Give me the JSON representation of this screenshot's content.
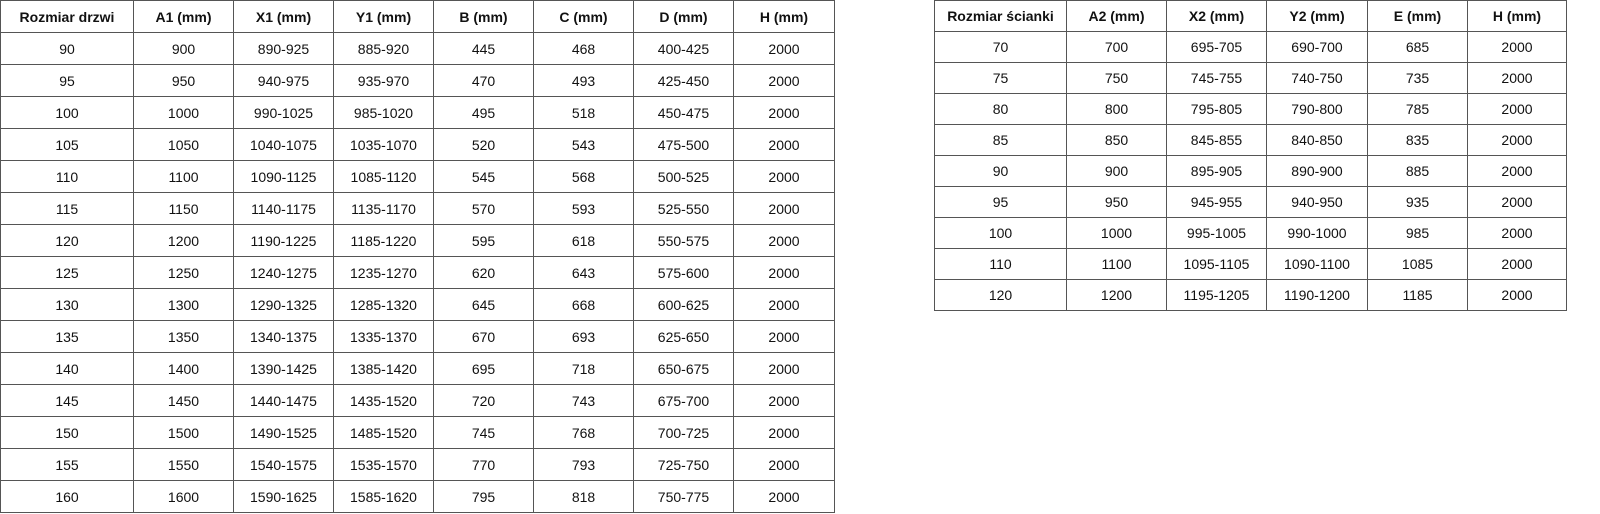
{
  "door_table": {
    "headers": [
      "Rozmiar drzwi",
      "A1 (mm)",
      "X1 (mm)",
      "Y1 (mm)",
      "B (mm)",
      "C (mm)",
      "D (mm)",
      "H (mm)"
    ],
    "rows": [
      [
        "90",
        "900",
        "890-925",
        "885-920",
        "445",
        "468",
        "400-425",
        "2000"
      ],
      [
        "95",
        "950",
        "940-975",
        "935-970",
        "470",
        "493",
        "425-450",
        "2000"
      ],
      [
        "100",
        "1000",
        "990-1025",
        "985-1020",
        "495",
        "518",
        "450-475",
        "2000"
      ],
      [
        "105",
        "1050",
        "1040-1075",
        "1035-1070",
        "520",
        "543",
        "475-500",
        "2000"
      ],
      [
        "110",
        "1100",
        "1090-1125",
        "1085-1120",
        "545",
        "568",
        "500-525",
        "2000"
      ],
      [
        "115",
        "1150",
        "1140-1175",
        "1135-1170",
        "570",
        "593",
        "525-550",
        "2000"
      ],
      [
        "120",
        "1200",
        "1190-1225",
        "1185-1220",
        "595",
        "618",
        "550-575",
        "2000"
      ],
      [
        "125",
        "1250",
        "1240-1275",
        "1235-1270",
        "620",
        "643",
        "575-600",
        "2000"
      ],
      [
        "130",
        "1300",
        "1290-1325",
        "1285-1320",
        "645",
        "668",
        "600-625",
        "2000"
      ],
      [
        "135",
        "1350",
        "1340-1375",
        "1335-1370",
        "670",
        "693",
        "625-650",
        "2000"
      ],
      [
        "140",
        "1400",
        "1390-1425",
        "1385-1420",
        "695",
        "718",
        "650-675",
        "2000"
      ],
      [
        "145",
        "1450",
        "1440-1475",
        "1435-1520",
        "720",
        "743",
        "675-700",
        "2000"
      ],
      [
        "150",
        "1500",
        "1490-1525",
        "1485-1520",
        "745",
        "768",
        "700-725",
        "2000"
      ],
      [
        "155",
        "1550",
        "1540-1575",
        "1535-1570",
        "770",
        "793",
        "725-750",
        "2000"
      ],
      [
        "160",
        "1600",
        "1590-1625",
        "1585-1620",
        "795",
        "818",
        "750-775",
        "2000"
      ]
    ]
  },
  "wall_table": {
    "headers": [
      "Rozmiar ścianki",
      "A2 (mm)",
      "X2 (mm)",
      "Y2 (mm)",
      "E (mm)",
      "H (mm)"
    ],
    "rows": [
      [
        "70",
        "700",
        "695-705",
        "690-700",
        "685",
        "2000"
      ],
      [
        "75",
        "750",
        "745-755",
        "740-750",
        "735",
        "2000"
      ],
      [
        "80",
        "800",
        "795-805",
        "790-800",
        "785",
        "2000"
      ],
      [
        "85",
        "850",
        "845-855",
        "840-850",
        "835",
        "2000"
      ],
      [
        "90",
        "900",
        "895-905",
        "890-900",
        "885",
        "2000"
      ],
      [
        "95",
        "950",
        "945-955",
        "940-950",
        "935",
        "2000"
      ],
      [
        "100",
        "1000",
        "995-1005",
        "990-1000",
        "985",
        "2000"
      ],
      [
        "110",
        "1100",
        "1095-1105",
        "1090-1100",
        "1085",
        "2000"
      ],
      [
        "120",
        "1200",
        "1195-1205",
        "1190-1200",
        "1185",
        "2000"
      ]
    ]
  }
}
